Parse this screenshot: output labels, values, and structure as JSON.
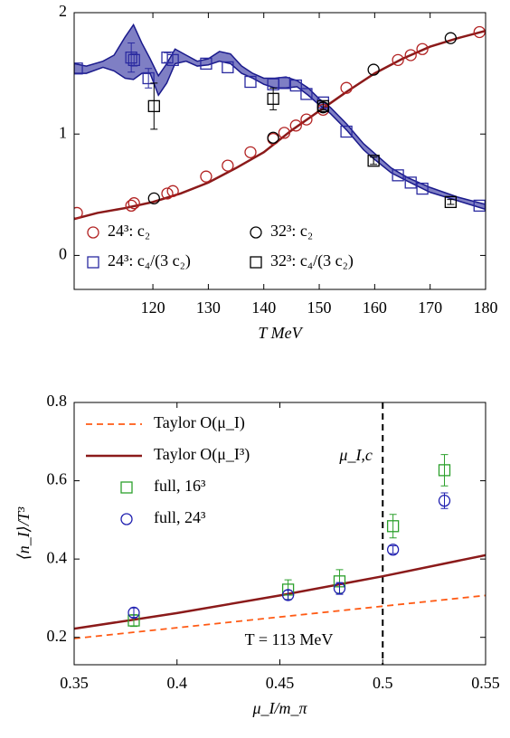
{
  "chart_data": [
    {
      "type": "scatter",
      "xlabel": "T MeV",
      "xlim": [
        105.8,
        180
      ],
      "ylim": [
        -0.28,
        2
      ],
      "xticks": [
        120,
        130,
        140,
        150,
        160,
        170,
        180
      ],
      "yticks": [
        0,
        1,
        2
      ],
      "legend": "lower center",
      "series": [
        {
          "style": "band",
          "color": "#1a1a8c",
          "fill": "#7f7fc4",
          "x": [
            105.8,
            108,
            111,
            113,
            115,
            116.5,
            118,
            119.5,
            121,
            122.5,
            124,
            126,
            128,
            130,
            132,
            134,
            136,
            138,
            140,
            142,
            144,
            146,
            148,
            150,
            152,
            155,
            158,
            160,
            163,
            166,
            170,
            175,
            180
          ],
          "upper": [
            1.58,
            1.56,
            1.6,
            1.65,
            1.8,
            1.9,
            1.75,
            1.62,
            1.48,
            1.58,
            1.7,
            1.65,
            1.6,
            1.62,
            1.68,
            1.66,
            1.56,
            1.5,
            1.46,
            1.46,
            1.47,
            1.44,
            1.38,
            1.29,
            1.22,
            1.08,
            0.92,
            0.84,
            0.72,
            0.64,
            0.56,
            0.48,
            0.42
          ],
          "lower": [
            1.5,
            1.5,
            1.55,
            1.52,
            1.46,
            1.45,
            1.5,
            1.5,
            1.32,
            1.42,
            1.58,
            1.6,
            1.56,
            1.57,
            1.6,
            1.58,
            1.5,
            1.46,
            1.41,
            1.38,
            1.38,
            1.39,
            1.32,
            1.24,
            1.17,
            1.03,
            0.87,
            0.79,
            0.68,
            0.61,
            0.52,
            0.45,
            0.38
          ]
        },
        {
          "style": "line",
          "color": "#8b1a1a",
          "x": [
            105.8,
            110,
            115,
            120,
            125,
            130,
            135,
            140,
            145,
            150,
            155,
            160,
            165,
            170,
            175,
            180
          ],
          "values": [
            0.3,
            0.35,
            0.39,
            0.44,
            0.51,
            0.6,
            0.72,
            0.85,
            1.03,
            1.19,
            1.35,
            1.5,
            1.62,
            1.72,
            1.79,
            1.85
          ]
        },
        {
          "name": "24³: c₂",
          "marker": "circle",
          "color": "#b22222",
          "x": [
            106.3,
            116.1,
            116.6,
            122.6,
            123.6,
            129.6,
            133.5,
            137.6,
            141.7,
            143.7,
            145.8,
            147.7,
            150.7,
            154.9,
            164.2,
            166.5,
            168.6,
            178.9
          ],
          "values": [
            0.35,
            0.41,
            0.43,
            0.51,
            0.53,
            0.65,
            0.74,
            0.85,
            0.96,
            1.01,
            1.07,
            1.12,
            1.2,
            1.38,
            1.61,
            1.65,
            1.7,
            1.84
          ]
        },
        {
          "name": "24³: c₄/(3 c₂)",
          "marker": "square",
          "color": "#2a2aa0",
          "x": [
            106.3,
            116.1,
            116.6,
            119.2,
            122.6,
            123.6,
            129.6,
            133.5,
            137.6,
            141.7,
            143.7,
            145.8,
            147.7,
            150.7,
            154.9,
            164.2,
            166.5,
            168.6,
            178.9
          ],
          "values": [
            1.54,
            1.63,
            1.61,
            1.46,
            1.63,
            1.61,
            1.58,
            1.55,
            1.43,
            1.41,
            1.42,
            1.4,
            1.33,
            1.26,
            1.02,
            0.66,
            0.6,
            0.55,
            0.41
          ],
          "errors": [
            null,
            0.12,
            0.05,
            0.08,
            0.04,
            null,
            null,
            null,
            null,
            null,
            null,
            null,
            null,
            null,
            null,
            null,
            null,
            null,
            null
          ]
        },
        {
          "name": "32³: c₂",
          "marker": "circle",
          "color": "#000000",
          "x": [
            120.2,
            141.7,
            150.7,
            159.8,
            173.7
          ],
          "values": [
            0.47,
            0.97,
            1.22,
            1.53,
            1.79
          ]
        },
        {
          "name": "32³: c₄/(3 c₂)",
          "marker": "square",
          "color": "#000000",
          "x": [
            120.2,
            141.7,
            150.7,
            159.8,
            173.7
          ],
          "values": [
            1.23,
            1.29,
            1.23,
            0.78,
            0.44
          ],
          "errors": [
            0.19,
            0.09,
            0.03,
            0.03,
            0.02
          ]
        }
      ]
    },
    {
      "type": "scatter",
      "xlabel": "μ_I/m_π",
      "ylabel": "⟨n_I⟩/T³",
      "xlim": [
        0.35,
        0.55
      ],
      "ylim": [
        0.13,
        0.8
      ],
      "xticks": [
        0.35,
        0.4,
        0.45,
        0.5,
        0.55
      ],
      "yticks": [
        0.2,
        0.4,
        0.6,
        0.8
      ],
      "legend": "upper left",
      "vline": 0.5,
      "annotations": [
        "μ_I,c",
        "T = 113 MeV"
      ],
      "series": [
        {
          "name": "Taylor O(μ_I)",
          "style": "dashed",
          "color": "#ff5a14",
          "x": [
            0.35,
            0.55
          ],
          "values": [
            0.197,
            0.307
          ]
        },
        {
          "name": "Taylor O(μ_I³)",
          "style": "line",
          "color": "#8b1a1a",
          "x": [
            0.35,
            0.4,
            0.45,
            0.5,
            0.55
          ],
          "values": [
            0.222,
            0.262,
            0.307,
            0.356,
            0.41
          ]
        },
        {
          "name": "full, 16³",
          "marker": "square",
          "color": "#2ca02c",
          "x": [
            0.379,
            0.454,
            0.479,
            0.505,
            0.53
          ],
          "values": [
            0.243,
            0.322,
            0.343,
            0.484,
            0.627
          ],
          "errors": [
            0.015,
            0.025,
            0.03,
            0.03,
            0.04
          ]
        },
        {
          "name": "full, 24³",
          "marker": "circle",
          "color": "#2020b0",
          "x": [
            0.379,
            0.454,
            0.479,
            0.505,
            0.53
          ],
          "values": [
            0.263,
            0.308,
            0.325,
            0.424,
            0.549
          ],
          "errors": [
            0.012,
            0.012,
            0.015,
            0.01,
            0.02
          ]
        }
      ]
    }
  ]
}
